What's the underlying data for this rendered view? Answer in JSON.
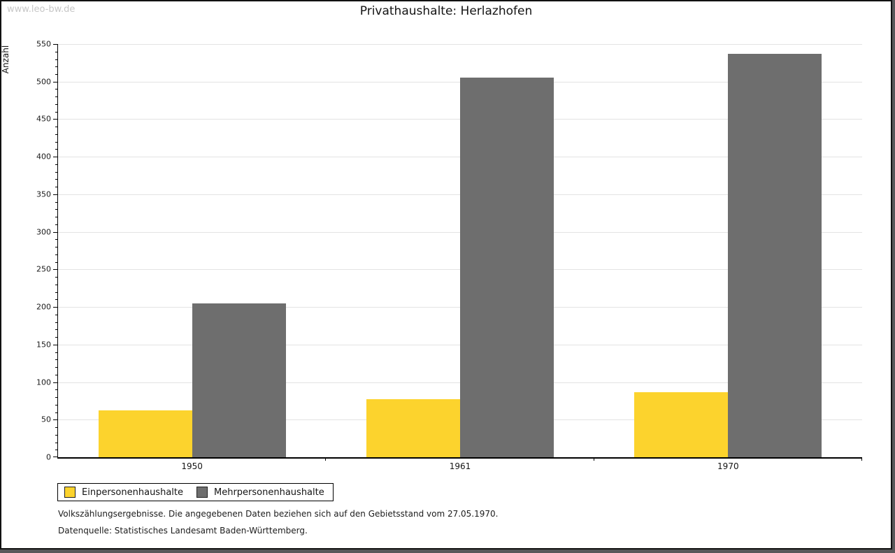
{
  "watermark": "www.leo-bw.de",
  "chart_data": {
    "type": "bar",
    "title": "Privathaushalte: Herlazhofen",
    "ylabel": "Anzahl",
    "xlabel": "",
    "categories": [
      "1950",
      "1961",
      "1970"
    ],
    "series": [
      {
        "name": "Einpersonenhaushalte",
        "color": "#FCD32D",
        "values": [
          62,
          77,
          87
        ]
      },
      {
        "name": "Mehrpersonenhaushalte",
        "color": "#6E6E6E",
        "values": [
          205,
          505,
          537
        ]
      }
    ],
    "ylim": [
      0,
      550
    ],
    "y_major_step": 50,
    "y_minor_step": 10,
    "grid": "horizontal-major",
    "legend_position": "bottom-left"
  },
  "footnotes": {
    "line1": "Volkszählungsergebnisse. Die angegebenen Daten beziehen sich auf den Gebietsstand vom 27.05.1970.",
    "line2": "Datenquelle: Statistisches Landesamt Baden-Württemberg."
  },
  "colors": {
    "axis": "#000000",
    "grid": "#e3e3e3",
    "watermark": "#c7c7c7",
    "frame_shadow": "#58585a"
  }
}
